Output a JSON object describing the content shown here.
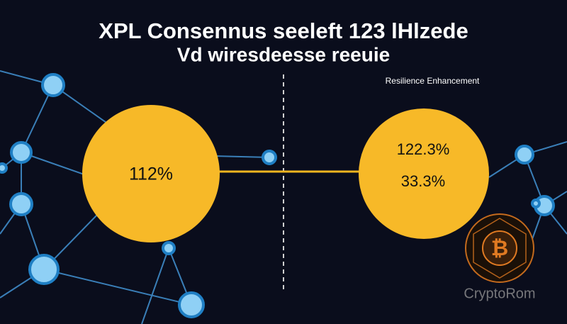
{
  "title": "XPL Consennus seeleft 123 lHlzede",
  "subtitle": "Vd wiresdeesse reeuie",
  "label": "Resilience Enhancement",
  "left_circle": {
    "value": "112%"
  },
  "right_circle": {
    "values": [
      "122.3%",
      "33.3%"
    ]
  },
  "watermark": "CryptoRom"
}
